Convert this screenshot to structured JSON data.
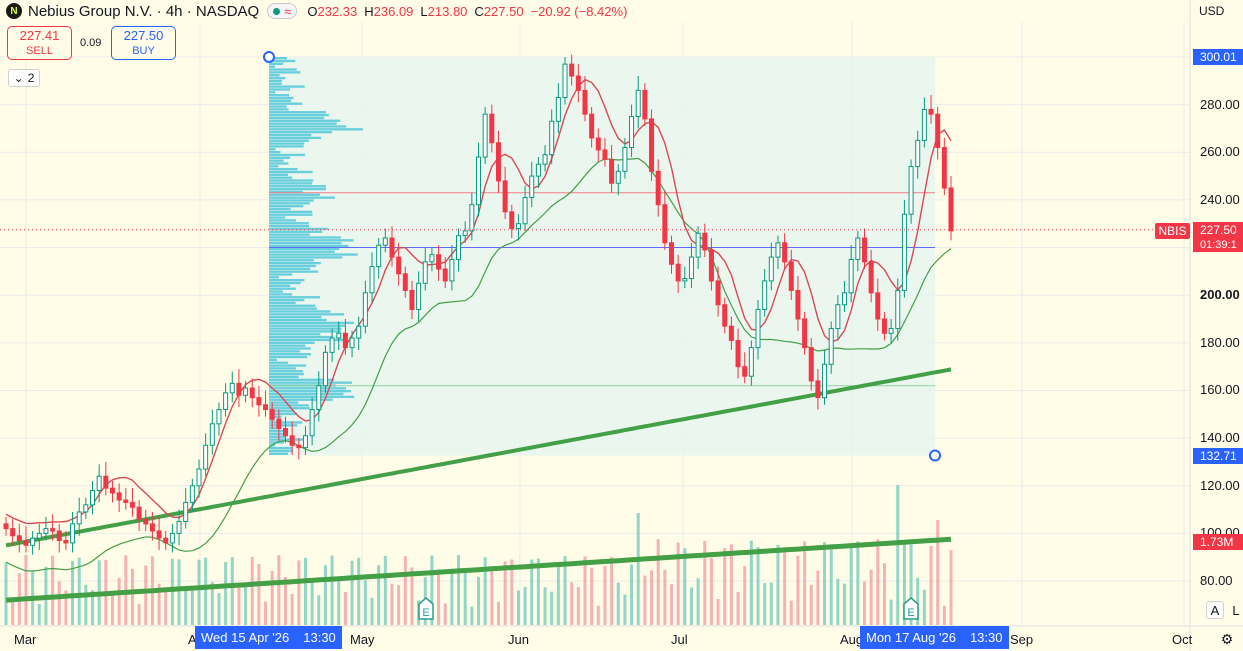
{
  "header": {
    "logo_letter": "N",
    "title": "Nebius Group N.V. · 4h · NASDAQ",
    "wave_icon": "≈",
    "ohlc": {
      "o_label": "O",
      "o_value": "232.33",
      "h_label": "H",
      "h_value": "236.09",
      "l_label": "L",
      "l_value": "213.80",
      "c_label": "C",
      "c_value": "227.50",
      "change": "−20.92 (−8.42%)"
    }
  },
  "trade": {
    "sell_price": "227.41",
    "sell_label": "SELL",
    "spread": "0.09",
    "buy_price": "227.50",
    "buy_label": "BUY"
  },
  "collapse": {
    "icon": "⌄",
    "count": "2"
  },
  "currency": "USD",
  "symbol_tag": "NBIS",
  "last_price": "227.50",
  "countdown": "01:39:1",
  "volume_tag": "1.73M",
  "range_high_tag": "300.01",
  "range_low_tag": "132.71",
  "cursor_dates": [
    {
      "date": "Wed 15 Apr '26",
      "time": "13:30"
    },
    {
      "date": "Mon 17 Aug '26",
      "time": "13:30"
    }
  ],
  "earnings_marker": "E",
  "buttons": {
    "auto": "A",
    "log": "L",
    "settings_icon": "⚙"
  },
  "colors": {
    "up": "#089981",
    "down": "#f23645",
    "accent": "#2962ff",
    "profile": "#3ec1d6",
    "ma": "#43a047",
    "background": "#fffde8"
  },
  "chart_data": {
    "type": "candlestick",
    "symbol": "NBIS",
    "interval": "4h",
    "ylim": [
      70,
      310
    ],
    "y_ticks": [
      300,
      280,
      260,
      240,
      220,
      200,
      180,
      160,
      140,
      120,
      100,
      80
    ],
    "y_tick_labels": [
      "300.00",
      "280.00",
      "260.00",
      "240.00",
      "220.00",
      "200.00",
      "180.00",
      "160.00",
      "140.00",
      "120.00",
      "100.00",
      "80.00"
    ],
    "x_ticks": [
      "Mar",
      "Apr",
      "May",
      "Jun",
      "Jul",
      "Aug",
      "Sep",
      "Oct"
    ],
    "closes": [
      102,
      99,
      97,
      95,
      98,
      100,
      102,
      101,
      97,
      96,
      104,
      109,
      112,
      118,
      124,
      119,
      117,
      114,
      113,
      111,
      106,
      104,
      101,
      98,
      96,
      100,
      105,
      113,
      120,
      127,
      137,
      146,
      152,
      159,
      163,
      158,
      161,
      157,
      154,
      152,
      148,
      144,
      141,
      137,
      136,
      141,
      152,
      162,
      176,
      182,
      184,
      178,
      182,
      187,
      201,
      212,
      221,
      224,
      216,
      209,
      202,
      194,
      205,
      214,
      217,
      211,
      206,
      215,
      225,
      227,
      238,
      258,
      276,
      264,
      248,
      235,
      228,
      230,
      241,
      250,
      255,
      259,
      273,
      283,
      297,
      292,
      286,
      276,
      266,
      261,
      257,
      247,
      252,
      262,
      275,
      286,
      274,
      252,
      238,
      222,
      213,
      206,
      207,
      216,
      226,
      219,
      206,
      196,
      187,
      181,
      170,
      166,
      178,
      194,
      206,
      216,
      222,
      214,
      202,
      190,
      178,
      164,
      157,
      171,
      186,
      196,
      201,
      215,
      224,
      214,
      201,
      190,
      184,
      186,
      202,
      234,
      254,
      265,
      278,
      276,
      262,
      245,
      227
    ],
    "volume_profile": {
      "price_range": [
        132.71,
        300.01
      ],
      "poc": 220
    },
    "earnings_dates": [
      "May",
      "Aug"
    ]
  }
}
